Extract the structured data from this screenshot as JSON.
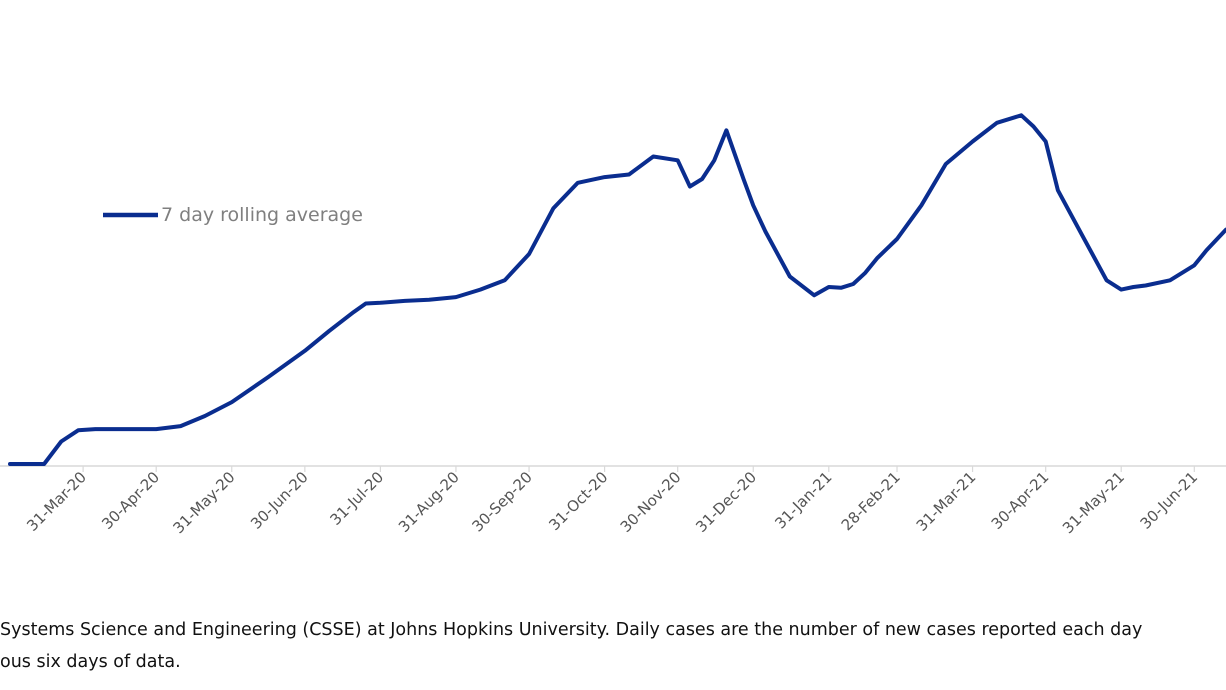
{
  "chart_data": {
    "type": "line",
    "title": "",
    "xlabel": "",
    "ylabel": "",
    "grid": false,
    "legend_position": "left",
    "x_ticks": [
      "31-Mar-20",
      "30-Apr-20",
      "31-May-20",
      "30-Jun-20",
      "31-Jul-20",
      "31-Aug-20",
      "30-Sep-20",
      "31-Oct-20",
      "30-Nov-20",
      "31-Dec-20",
      "31-Jan-21",
      "28-Feb-21",
      "31-Mar-21",
      "30-Apr-21",
      "31-May-21",
      "30-Jun-21"
    ],
    "x_range": [
      "2020-03-01",
      "2021-07-13"
    ],
    "y_range": [
      0,
      1
    ],
    "series": [
      {
        "name": "7 day rolling average",
        "color": "#0a2d8f",
        "x": [
          "2020-03-01",
          "2020-03-15",
          "2020-03-22",
          "2020-03-29",
          "2020-04-05",
          "2020-04-15",
          "2020-04-30",
          "2020-05-10",
          "2020-05-20",
          "2020-05-31",
          "2020-06-15",
          "2020-06-30",
          "2020-07-10",
          "2020-07-20",
          "2020-07-25",
          "2020-07-31",
          "2020-08-10",
          "2020-08-20",
          "2020-08-31",
          "2020-09-10",
          "2020-09-20",
          "2020-09-30",
          "2020-10-10",
          "2020-10-20",
          "2020-10-31",
          "2020-11-10",
          "2020-11-20",
          "2020-11-30",
          "2020-12-05",
          "2020-12-10",
          "2020-12-15",
          "2020-12-20",
          "2020-12-27",
          "2020-12-31",
          "2021-01-05",
          "2021-01-15",
          "2021-01-25",
          "2021-01-31",
          "2021-02-05",
          "2021-02-10",
          "2021-02-15",
          "2021-02-20",
          "2021-02-28",
          "2021-03-10",
          "2021-03-20",
          "2021-03-31",
          "2021-04-10",
          "2021-04-20",
          "2021-04-25",
          "2021-04-30",
          "2021-05-05",
          "2021-05-15",
          "2021-05-25",
          "2021-05-31",
          "2021-06-05",
          "2021-06-10",
          "2021-06-20",
          "2021-06-30",
          "2021-07-05",
          "2021-07-13"
        ],
        "values": [
          0.0,
          0.0,
          0.06,
          0.09,
          0.093,
          0.093,
          0.093,
          0.101,
          0.128,
          0.165,
          0.232,
          0.302,
          0.355,
          0.405,
          0.428,
          0.43,
          0.435,
          0.438,
          0.445,
          0.465,
          0.49,
          0.56,
          0.682,
          0.75,
          0.765,
          0.772,
          0.82,
          0.81,
          0.74,
          0.76,
          0.81,
          0.89,
          0.76,
          0.69,
          0.62,
          0.5,
          0.45,
          0.472,
          0.47,
          0.48,
          0.51,
          0.55,
          0.6,
          0.69,
          0.8,
          0.86,
          0.91,
          0.93,
          0.9,
          0.86,
          0.73,
          0.61,
          0.49,
          0.465,
          0.472,
          0.476,
          0.49,
          0.53,
          0.57,
          0.625
        ]
      }
    ]
  },
  "footnote": {
    "line1": "Systems Science and Engineering (CSSE) at Johns Hopkins University. Daily cases are the number of new cases reported each day",
    "line2": "ous six days of data."
  }
}
